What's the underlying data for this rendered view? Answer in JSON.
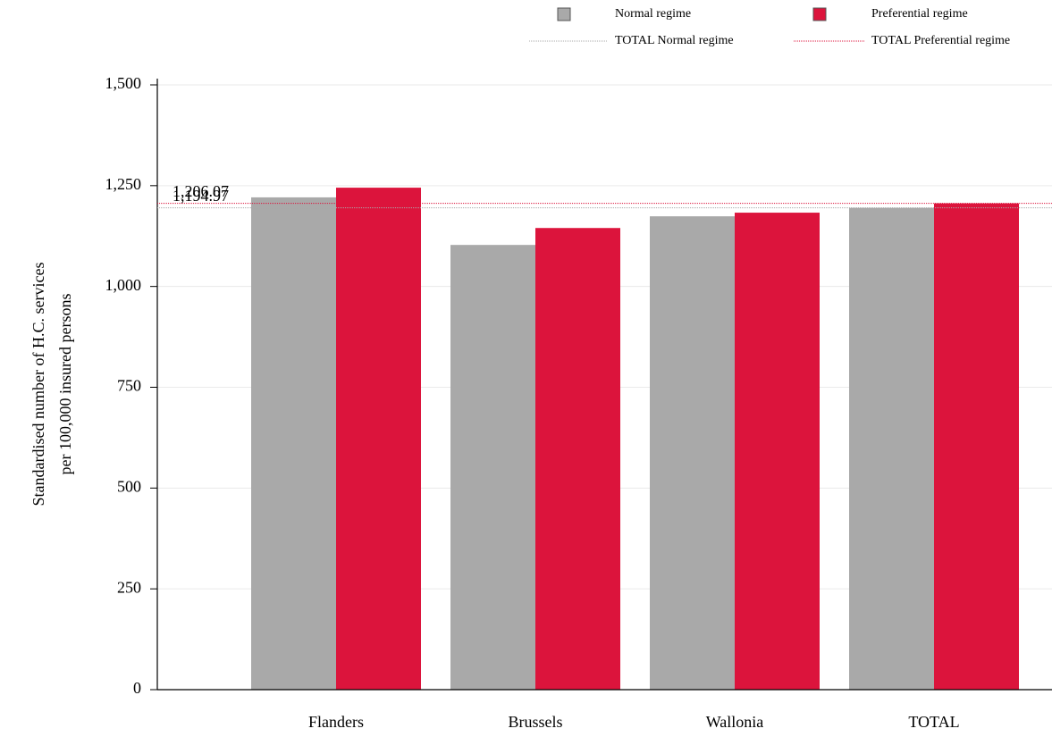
{
  "chart_data": {
    "type": "bar",
    "y_label": [
      "Standardised number of H.C. services",
      "per 100,000 insured persons"
    ],
    "categories": [
      "Flanders",
      "Brussels",
      "Wallonia",
      "TOTAL"
    ],
    "series": [
      {
        "name": "Normal regime",
        "color": "#a9a9a9",
        "values": [
          1221,
          1103,
          1174,
          1194.97
        ]
      },
      {
        "name": "Preferential regime",
        "color": "#dc143c",
        "values": [
          1245,
          1145,
          1183,
          1206.07
        ]
      }
    ],
    "reference_lines": [
      {
        "name": "TOTAL Normal regime",
        "color": "#a9a9a9",
        "value": 1194.97,
        "label": "1,194.97"
      },
      {
        "name": "TOTAL Preferential regime",
        "color": "#dc143c",
        "value": 1206.07,
        "label": "1,206.07"
      }
    ],
    "ylim": [
      0,
      1500
    ],
    "yticks": [
      0,
      250,
      500,
      750,
      {
        "value": 1000,
        "label": "1,000"
      },
      {
        "value": 1250,
        "label": "1,250"
      },
      {
        "value": 1500,
        "label": "1,500"
      }
    ],
    "grid": true
  }
}
